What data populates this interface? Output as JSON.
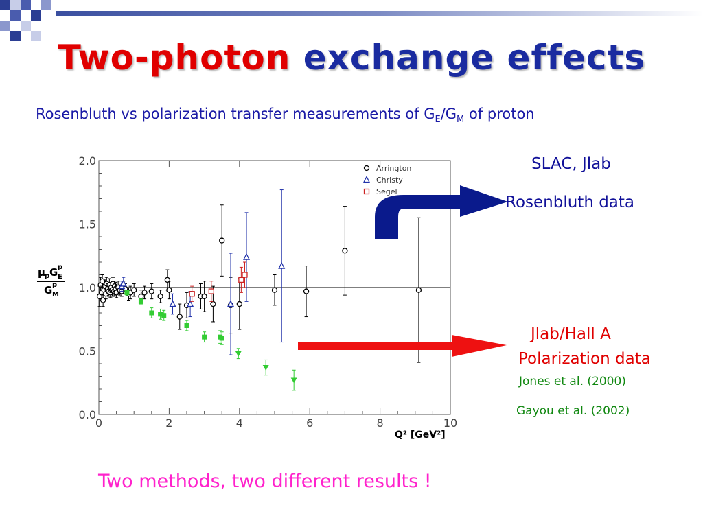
{
  "title": {
    "part1": "Two-photon",
    "part2": "exchange effects"
  },
  "subtitle": {
    "prefix": "Rosenbluth vs polarization transfer measurements of G",
    "sub1": "E",
    "slash": "/G",
    "sub2": "M",
    "suffix": " of proton"
  },
  "labels": {
    "slac": "SLAC, Jlab",
    "rosenbluth": "Rosenbluth data",
    "hall": "Jlab/Hall A",
    "polarization": "Polarization data",
    "jones": "Jones et al. (2000)",
    "gayou": "Gayou et al. (2002)"
  },
  "bottom_text": "Two methods, two different results !",
  "colors": {
    "red": "#e00000",
    "blue": "#1a2ba0",
    "navy": "#0a1a8c",
    "green": "#33cc33",
    "magenta": "#ff22cc",
    "segel": "#cc2222"
  },
  "chart_data": {
    "type": "scatter",
    "xlabel": "Q² [GeV²]",
    "ylabel": "μpGE/GM",
    "ylabel_parts": {
      "mu": "μ",
      "p1": "p",
      "g1": "G",
      "e": "E",
      "p2": "p",
      "g2": "G",
      "m": "M",
      "p3": "p"
    },
    "xlim": [
      0,
      10
    ],
    "ylim": [
      0,
      2
    ],
    "x_ticks": [
      "0",
      "2",
      "4",
      "6",
      "8",
      "10"
    ],
    "y_ticks": [
      "0.0",
      "0.5",
      "1.0",
      "1.5",
      "2.0"
    ],
    "reference_line": 1.0,
    "legend_placement": "top-right",
    "series": [
      {
        "name": "Arrington",
        "marker": "circle-open",
        "color": "#000000",
        "x": [
          0.02,
          0.05,
          0.08,
          0.1,
          0.12,
          0.15,
          0.18,
          0.2,
          0.22,
          0.25,
          0.28,
          0.3,
          0.33,
          0.35,
          0.38,
          0.4,
          0.43,
          0.45,
          0.48,
          0.5,
          0.55,
          0.6,
          0.65,
          0.7,
          0.75,
          0.85,
          0.9,
          1.0,
          1.2,
          1.3,
          1.5,
          1.75,
          1.95,
          2.0,
          2.3,
          2.5,
          2.9,
          3.0,
          3.25,
          3.5,
          3.75,
          4.0,
          5.0,
          5.9,
          7.0,
          9.1
        ],
        "y": [
          0.93,
          1.02,
          0.96,
          1.05,
          0.9,
          0.98,
          1.01,
          0.95,
          1.03,
          0.99,
          0.97,
          1.02,
          0.96,
          1.0,
          0.98,
          1.03,
          0.97,
          1.01,
          0.99,
          0.96,
          1.0,
          0.98,
          0.97,
          1.0,
          0.99,
          0.95,
          0.96,
          0.98,
          0.93,
          0.96,
          0.97,
          0.93,
          1.06,
          0.98,
          0.77,
          0.86,
          0.93,
          0.93,
          0.87,
          1.37,
          0.86,
          0.87,
          0.98,
          0.97,
          1.29,
          0.98
        ],
        "err": [
          0.08,
          0.06,
          0.05,
          0.05,
          0.05,
          0.04,
          0.05,
          0.04,
          0.05,
          0.04,
          0.04,
          0.05,
          0.04,
          0.04,
          0.05,
          0.05,
          0.04,
          0.04,
          0.05,
          0.04,
          0.05,
          0.04,
          0.04,
          0.05,
          0.04,
          0.05,
          0.05,
          0.05,
          0.05,
          0.05,
          0.06,
          0.05,
          0.08,
          0.07,
          0.1,
          0.1,
          0.1,
          0.12,
          0.14,
          0.28,
          0.22,
          0.2,
          0.12,
          0.2,
          0.35,
          0.57
        ]
      },
      {
        "name": "Christy",
        "marker": "triangle-open",
        "color": "#2233aa",
        "x": [
          0.65,
          0.7,
          2.1,
          2.6,
          3.75,
          4.2,
          5.2
        ],
        "y": [
          1.01,
          1.03,
          0.87,
          0.87,
          0.87,
          1.24,
          1.17
        ],
        "err": [
          0.04,
          0.05,
          0.08,
          0.1,
          0.4,
          0.35,
          0.6
        ]
      },
      {
        "name": "Segel",
        "marker": "square-open",
        "color": "#cc2222",
        "x": [
          2.65,
          3.2,
          4.05,
          4.15
        ],
        "y": [
          0.95,
          0.97,
          1.06,
          1.1
        ],
        "err": [
          0.06,
          0.08,
          0.1,
          0.1
        ]
      },
      {
        "name": "",
        "marker": "square-filled",
        "color": "#33cc33",
        "x": [
          0.8,
          1.2,
          1.5,
          1.75,
          1.85,
          2.5,
          3.0,
          3.45,
          3.5
        ],
        "y": [
          0.96,
          0.89,
          0.8,
          0.79,
          0.78,
          0.7,
          0.61,
          0.61,
          0.6
        ],
        "err": [
          0.02,
          0.02,
          0.04,
          0.04,
          0.04,
          0.04,
          0.04,
          0.05,
          0.05
        ]
      },
      {
        "name": "",
        "marker": "triangle-down-filled",
        "color": "#33cc33",
        "x": [
          3.97,
          4.75,
          5.55
        ],
        "y": [
          0.48,
          0.37,
          0.27
        ],
        "err": [
          0.04,
          0.06,
          0.08
        ]
      }
    ]
  }
}
